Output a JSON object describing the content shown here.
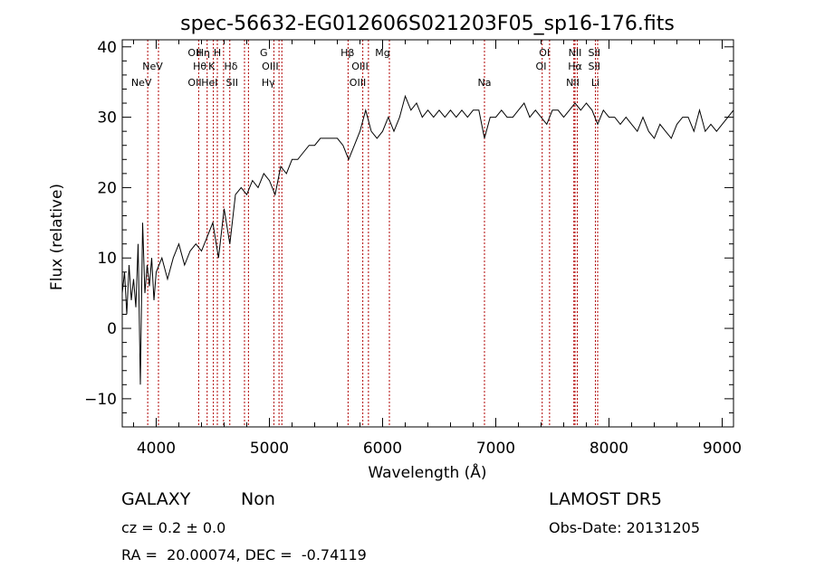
{
  "chart_data": {
    "type": "line",
    "title": "spec-56632-EG012606S021203F05_sp16-176.fits",
    "xlabel": "Wavelength (Å)",
    "ylabel": "Flux (relative)",
    "xlim": [
      3700,
      9100
    ],
    "ylim": [
      -14,
      41
    ],
    "xticks": [
      4000,
      5000,
      6000,
      7000,
      8000,
      9000
    ],
    "yticks": [
      -10,
      0,
      10,
      20,
      30,
      40
    ],
    "xtick_labels": [
      "4000",
      "5000",
      "6000",
      "7000",
      "8000",
      "9000"
    ],
    "ytick_labels": [
      "−10",
      "0",
      "10",
      "20",
      "30",
      "40"
    ],
    "grid": false,
    "line_color": "#000000",
    "marker_color": "#b00000",
    "series": [
      {
        "x": [
          3700,
          3720,
          3740,
          3760,
          3780,
          3800,
          3820,
          3840,
          3860,
          3880,
          3900,
          3920,
          3940,
          3960,
          3980,
          4000,
          4050,
          4100,
          4150,
          4200,
          4250,
          4300,
          4350,
          4400,
          4450,
          4500,
          4550,
          4600,
          4650,
          4700,
          4750,
          4800,
          4850,
          4900,
          4950,
          5000,
          5050,
          5100,
          5150,
          5200,
          5250,
          5300,
          5350,
          5400,
          5450,
          5500,
          5550,
          5600,
          5650,
          5700,
          5750,
          5800,
          5850,
          5900,
          5950,
          6000,
          6050,
          6100,
          6150,
          6200,
          6250,
          6300,
          6350,
          6400,
          6450,
          6500,
          6550,
          6600,
          6650,
          6700,
          6750,
          6800,
          6850,
          6900,
          6950,
          7000,
          7050,
          7100,
          7150,
          7200,
          7250,
          7300,
          7350,
          7400,
          7450,
          7500,
          7550,
          7600,
          7650,
          7700,
          7750,
          7800,
          7850,
          7900,
          7950,
          8000,
          8050,
          8100,
          8150,
          8200,
          8250,
          8300,
          8350,
          8400,
          8450,
          8500,
          8550,
          8600,
          8650,
          8700,
          8750,
          8800,
          8850,
          8900,
          8950,
          9000,
          9050,
          9100
        ],
        "y": [
          5,
          8,
          2,
          9,
          4,
          7,
          3,
          12,
          -8,
          15,
          5,
          9,
          6,
          10,
          4,
          8,
          10,
          7,
          10,
          12,
          9,
          11,
          12,
          11,
          13,
          15,
          10,
          17,
          12,
          19,
          20,
          19,
          21,
          20,
          22,
          21,
          19,
          23,
          22,
          24,
          24,
          25,
          26,
          26,
          27,
          27,
          27,
          27,
          26,
          24,
          26,
          28,
          31,
          28,
          27,
          28,
          30,
          28,
          30,
          33,
          31,
          32,
          30,
          31,
          30,
          31,
          30,
          31,
          30,
          31,
          30,
          31,
          31,
          27,
          30,
          30,
          31,
          30,
          30,
          31,
          32,
          30,
          31,
          30,
          29,
          31,
          31,
          30,
          31,
          32,
          31,
          32,
          31,
          29,
          31,
          30,
          30,
          29,
          30,
          29,
          28,
          30,
          28,
          27,
          29,
          28,
          27,
          29,
          30,
          30,
          28,
          31,
          28,
          29,
          28,
          29,
          30,
          31
        ]
      }
    ],
    "lines": [
      {
        "x": 3869,
        "label": "NeV",
        "row": 4
      },
      {
        "x": 3968,
        "label": "NeV",
        "row": 3
      },
      {
        "x": 4340,
        "label": "OII",
        "row": 1
      },
      {
        "x": 4340,
        "label": "OII",
        "row": 4
      },
      {
        "x": 4385,
        "label": "Hθ",
        "row": 3
      },
      {
        "x": 4415,
        "label": "Hη",
        "row": 1
      },
      {
        "x": 4471,
        "label": "HeI",
        "row": 4
      },
      {
        "x": 4490,
        "label": "K",
        "row": 3
      },
      {
        "x": 4540,
        "label": "H",
        "row": 1
      },
      {
        "x": 4660,
        "label": "Hδ",
        "row": 3
      },
      {
        "x": 4670,
        "label": "SII",
        "row": 4
      },
      {
        "x": 4950,
        "label": "G",
        "row": 1
      },
      {
        "x": 5007,
        "label": "OIII",
        "row": 3
      },
      {
        "x": 4990,
        "label": "Hγ",
        "row": 4
      },
      {
        "x": 5690,
        "label": "Hβ",
        "row": 1
      },
      {
        "x": 5800,
        "label": "OIII",
        "row": 3
      },
      {
        "x": 5780,
        "label": "OIII",
        "row": 4
      },
      {
        "x": 6000,
        "label": "Mg",
        "row": 1
      },
      {
        "x": 6900,
        "label": "Na",
        "row": 4
      },
      {
        "x": 7430,
        "label": "OI",
        "row": 1
      },
      {
        "x": 7400,
        "label": "OI",
        "row": 3
      },
      {
        "x": 7700,
        "label": "NII",
        "row": 1
      },
      {
        "x": 7700,
        "label": "Hα",
        "row": 3
      },
      {
        "x": 7680,
        "label": "NII",
        "row": 4
      },
      {
        "x": 7870,
        "label": "SII",
        "row": 1
      },
      {
        "x": 7870,
        "label": "SII",
        "row": 3
      },
      {
        "x": 7880,
        "label": "Li",
        "row": 4
      }
    ],
    "line_markers_x": [
      3925,
      4020,
      4375,
      4450,
      4505,
      4540,
      4595,
      4650,
      4780,
      4815,
      5040,
      5085,
      5110,
      5695,
      5825,
      5875,
      6060,
      6900,
      7410,
      7475,
      7690,
      7700,
      7720,
      7880,
      7900
    ]
  },
  "info": {
    "object_class": "GALAXY",
    "subclass": "Non",
    "survey": "LAMOST DR5",
    "cz_label": "cz = ",
    "cz_value": "0.2",
    "cz_pm": "±",
    "cz_err": "0.0",
    "obs_date": "Obs-Date: 20131205",
    "ra_label": "RA = ",
    "ra_value": "20.00074",
    "dec_label": "DEC = ",
    "dec_value": "-0.74119"
  }
}
